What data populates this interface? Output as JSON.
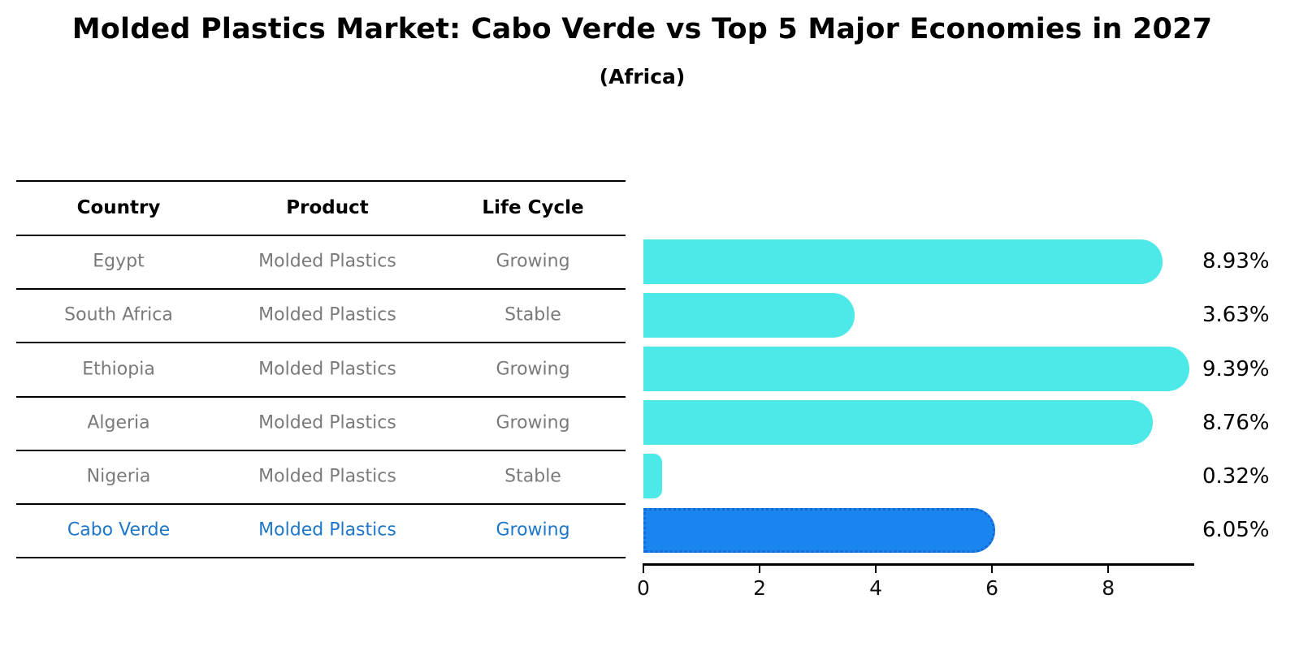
{
  "title": "Molded Plastics Market: Cabo Verde vs Top 5 Major Economies in 2027",
  "subtitle": "(Africa)",
  "table": {
    "headers": [
      "Country",
      "Product",
      "Life Cycle"
    ],
    "rows": [
      {
        "country": "Egypt",
        "product": "Molded Plastics",
        "life_cycle": "Growing",
        "highlight": false
      },
      {
        "country": "South Africa",
        "product": "Molded Plastics",
        "life_cycle": "Stable",
        "highlight": false
      },
      {
        "country": "Ethiopia",
        "product": "Molded Plastics",
        "life_cycle": "Growing",
        "highlight": false
      },
      {
        "country": "Algeria",
        "product": "Molded Plastics",
        "life_cycle": "Growing",
        "highlight": false
      },
      {
        "country": "Nigeria",
        "product": "Molded Plastics",
        "life_cycle": "Stable",
        "highlight": false
      },
      {
        "country": "Cabo Verde",
        "product": "Molded Plastics",
        "life_cycle": "Growing",
        "highlight": true
      }
    ]
  },
  "chart_data": {
    "type": "bar",
    "orientation": "horizontal",
    "title": "Molded Plastics Market: Cabo Verde vs Top 5 Major Economies in 2027",
    "subtitle": "(Africa)",
    "categories": [
      "Egypt",
      "South Africa",
      "Ethiopia",
      "Algeria",
      "Nigeria",
      "Cabo Verde"
    ],
    "values": [
      8.93,
      3.63,
      9.39,
      8.76,
      0.32,
      6.05
    ],
    "bar_labels": [
      "8.93%",
      "3.63%",
      "9.39%",
      "8.76%",
      "0.32%",
      "6.05%"
    ],
    "x_ticks": [
      "0",
      "2",
      "4",
      "6",
      "8"
    ],
    "xlim": [
      0,
      9.48
    ],
    "grid": false,
    "legend_position": "none",
    "highlight_index": 5
  },
  "colors": {
    "bar": "#4de8e8",
    "highlight_bar": "#1a84ef",
    "highlight_bar_edge": "#1668d2",
    "highlight_text": "#1f77c9",
    "row_text": "#7a7a7a",
    "header_text": "#000000",
    "axis": "#000000",
    "value_label": "#000000"
  }
}
